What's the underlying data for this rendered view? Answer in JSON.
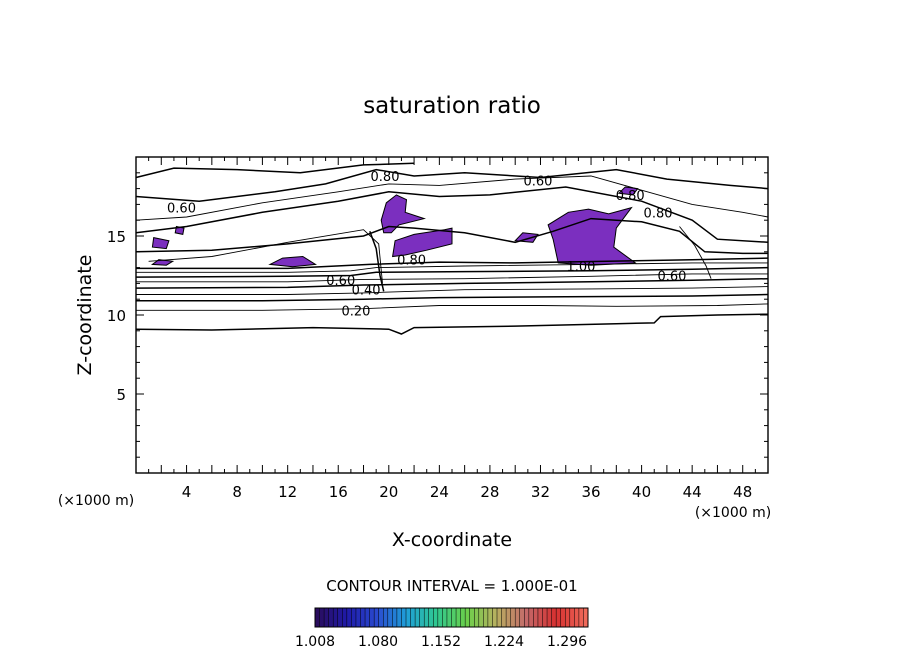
{
  "chart_data": {
    "type": "contour",
    "title": "saturation ratio",
    "xlabel": "X-coordinate",
    "ylabel": "Z-coordinate",
    "x_unit_label": "(×1000 m)",
    "y_unit_label": "(×1000 m)",
    "xlim": [
      0,
      50
    ],
    "ylim": [
      0,
      20
    ],
    "x_ticks": [
      4,
      8,
      12,
      16,
      20,
      24,
      28,
      32,
      36,
      40,
      44,
      48
    ],
    "y_ticks": [
      5,
      10,
      15
    ],
    "contour_interval_text": "CONTOUR INTERVAL = 1.000E-01",
    "contour_labels": [
      {
        "text": "0.80",
        "x": 19.7,
        "y": 18.8
      },
      {
        "text": "0.60",
        "x": 31.8,
        "y": 18.5
      },
      {
        "text": "0.60",
        "x": 3.6,
        "y": 16.8
      },
      {
        "text": "0.80",
        "x": 39.1,
        "y": 17.6
      },
      {
        "text": "0.80",
        "x": 41.3,
        "y": 16.5
      },
      {
        "text": "0.80",
        "x": 21.8,
        "y": 13.5
      },
      {
        "text": "1.00",
        "x": 35.2,
        "y": 13.1
      },
      {
        "text": "0.60",
        "x": 16.2,
        "y": 12.2
      },
      {
        "text": "0.40",
        "x": 18.2,
        "y": 11.6
      },
      {
        "text": "0.20",
        "x": 17.4,
        "y": 10.3
      },
      {
        "text": "0.60",
        "x": 42.4,
        "y": 12.5
      }
    ],
    "contour_lines": [
      {
        "level": 0.0,
        "points": [
          [
            0,
            9.1
          ],
          [
            6,
            9.05
          ],
          [
            14,
            9.2
          ],
          [
            20,
            9.1
          ],
          [
            21,
            8.8
          ],
          [
            22,
            9.2
          ],
          [
            30,
            9.3
          ],
          [
            38,
            9.45
          ],
          [
            41,
            9.5
          ],
          [
            41.5,
            9.9
          ],
          [
            46,
            10.0
          ],
          [
            50,
            10.05
          ]
        ]
      },
      {
        "level": 0.1,
        "points": [
          [
            0,
            10.3
          ],
          [
            10,
            10.3
          ],
          [
            18,
            10.4
          ],
          [
            24,
            10.6
          ],
          [
            32,
            10.6
          ],
          [
            38,
            10.55
          ],
          [
            46,
            10.6
          ],
          [
            50,
            10.7
          ]
        ]
      },
      {
        "level": 0.2,
        "points": [
          [
            0,
            10.9
          ],
          [
            10,
            10.9
          ],
          [
            18,
            11.0
          ],
          [
            24,
            11.1
          ],
          [
            34,
            11.15
          ],
          [
            44,
            11.2
          ],
          [
            50,
            11.3
          ]
        ]
      },
      {
        "level": 0.3,
        "points": [
          [
            0,
            11.3
          ],
          [
            12,
            11.3
          ],
          [
            18,
            11.4
          ],
          [
            26,
            11.6
          ],
          [
            36,
            11.65
          ],
          [
            44,
            11.7
          ],
          [
            50,
            11.8
          ]
        ]
      },
      {
        "level": 0.4,
        "points": [
          [
            0,
            11.7
          ],
          [
            12,
            11.75
          ],
          [
            18,
            11.9
          ],
          [
            26,
            12.0
          ],
          [
            36,
            12.1
          ],
          [
            44,
            12.2
          ],
          [
            50,
            12.3
          ]
        ]
      },
      {
        "level": 0.5,
        "points": [
          [
            0,
            12.1
          ],
          [
            12,
            12.1
          ],
          [
            18,
            12.25
          ],
          [
            26,
            12.3
          ],
          [
            36,
            12.45
          ],
          [
            44,
            12.6
          ],
          [
            50,
            12.6
          ]
        ]
      },
      {
        "level": 0.6,
        "points": [
          [
            0,
            12.4
          ],
          [
            12,
            12.45
          ],
          [
            17,
            12.5
          ],
          [
            19,
            12.7
          ],
          [
            26,
            12.75
          ],
          [
            36,
            12.8
          ],
          [
            44,
            12.9
          ],
          [
            50,
            13.0
          ]
        ]
      },
      {
        "level": 0.7,
        "points": [
          [
            0,
            12.7
          ],
          [
            12,
            12.7
          ],
          [
            17,
            12.8
          ],
          [
            19,
            13.0
          ],
          [
            26,
            13.1
          ],
          [
            36,
            13.2
          ],
          [
            44,
            13.3
          ],
          [
            50,
            13.3
          ]
        ]
      },
      {
        "level": 0.8,
        "points": [
          [
            0,
            12.95
          ],
          [
            12,
            12.95
          ],
          [
            18.5,
            13.2
          ],
          [
            24,
            13.35
          ],
          [
            30,
            13.3
          ],
          [
            44,
            13.5
          ],
          [
            50,
            13.6
          ]
        ]
      },
      {
        "level": 0.8,
        "points": [
          [
            0,
            15.2
          ],
          [
            4,
            15.6
          ],
          [
            10,
            16.5
          ],
          [
            16,
            17.2
          ],
          [
            20,
            17.8
          ],
          [
            24,
            17.5
          ],
          [
            28,
            17.6
          ],
          [
            34,
            18.1
          ],
          [
            40,
            17.2
          ],
          [
            44,
            16.0
          ],
          [
            46,
            14.8
          ],
          [
            50,
            14.6
          ]
        ]
      },
      {
        "level": 0.7,
        "points": [
          [
            0,
            16.0
          ],
          [
            4,
            16.2
          ],
          [
            10,
            17.1
          ],
          [
            16,
            17.8
          ],
          [
            20,
            18.3
          ],
          [
            24,
            18.2
          ],
          [
            30,
            18.6
          ],
          [
            36,
            18.8
          ],
          [
            40,
            17.9
          ],
          [
            44,
            17.0
          ],
          [
            48,
            16.5
          ],
          [
            50,
            16.2
          ]
        ]
      },
      {
        "level": 0.6,
        "points": [
          [
            0,
            17.5
          ],
          [
            5,
            17.2
          ],
          [
            11,
            17.8
          ],
          [
            15,
            18.3
          ],
          [
            19,
            19.2
          ],
          [
            22,
            18.8
          ],
          [
            26,
            19.0
          ],
          [
            32,
            18.7
          ],
          [
            38,
            19.2
          ],
          [
            42,
            18.6
          ],
          [
            47,
            18.2
          ],
          [
            50,
            18.0
          ]
        ]
      },
      {
        "level": 0.6,
        "points": [
          [
            0,
            14.0
          ],
          [
            6,
            14.1
          ],
          [
            12,
            14.5
          ],
          [
            18,
            15.0
          ],
          [
            20,
            15.6
          ],
          [
            22,
            15.5
          ],
          [
            26,
            15.2
          ],
          [
            30,
            14.6
          ],
          [
            33,
            15.3
          ],
          [
            36,
            16.1
          ],
          [
            40,
            15.9
          ],
          [
            43,
            15.3
          ],
          [
            45,
            14.0
          ],
          [
            48,
            13.9
          ],
          [
            50,
            13.9
          ]
        ]
      },
      {
        "level": 0.9,
        "points": [
          [
            1,
            13.4
          ],
          [
            6,
            13.7
          ],
          [
            12,
            14.6
          ],
          [
            18,
            15.4
          ],
          [
            19.2,
            14.5
          ],
          [
            19.5,
            12.0
          ]
        ]
      },
      {
        "level": 0.9,
        "points": [
          [
            43,
            15.6
          ],
          [
            44.2,
            14.4
          ],
          [
            45.1,
            13.1
          ],
          [
            45.5,
            12.3
          ]
        ]
      },
      {
        "level": 0.8,
        "points": [
          [
            18.5,
            15.3
          ],
          [
            19.0,
            14.2
          ],
          [
            19.3,
            12.5
          ],
          [
            19.6,
            11.5
          ]
        ]
      },
      {
        "level": 0.6,
        "points": [
          [
            0,
            18.7
          ],
          [
            3,
            19.3
          ],
          [
            8,
            19.2
          ],
          [
            13,
            19.0
          ],
          [
            18,
            19.5
          ],
          [
            22,
            19.6
          ]
        ]
      }
    ],
    "filled_regions": [
      {
        "level": 1.02,
        "points": [
          [
            19.4,
            16.0
          ],
          [
            19.8,
            17.1
          ],
          [
            20.6,
            17.6
          ],
          [
            21.4,
            17.3
          ],
          [
            21.3,
            16.5
          ],
          [
            22.8,
            16.1
          ],
          [
            20.8,
            15.7
          ],
          [
            20.2,
            15.2
          ],
          [
            19.6,
            15.2
          ]
        ]
      },
      {
        "level": 1.02,
        "points": [
          [
            20.3,
            13.7
          ],
          [
            20.5,
            14.7
          ],
          [
            22.0,
            15.1
          ],
          [
            24.4,
            15.4
          ],
          [
            25.0,
            15.5
          ],
          [
            25.0,
            14.5
          ],
          [
            23.0,
            14.1
          ],
          [
            21.3,
            13.8
          ]
        ]
      },
      {
        "level": 1.02,
        "points": [
          [
            33.4,
            13.3
          ],
          [
            33.0,
            14.8
          ],
          [
            32.6,
            15.7
          ],
          [
            34.2,
            16.5
          ],
          [
            35.8,
            16.7
          ],
          [
            37.4,
            16.4
          ],
          [
            39.2,
            16.8
          ],
          [
            38.0,
            15.5
          ],
          [
            37.8,
            14.3
          ],
          [
            39.5,
            13.3
          ],
          [
            36.0,
            13.15
          ]
        ]
      },
      {
        "level": 1.02,
        "points": [
          [
            10.6,
            13.2
          ],
          [
            11.6,
            13.6
          ],
          [
            13.2,
            13.7
          ],
          [
            14.2,
            13.2
          ],
          [
            12.4,
            13.05
          ]
        ]
      },
      {
        "level": 1.02,
        "points": [
          [
            1.3,
            14.3
          ],
          [
            1.4,
            14.9
          ],
          [
            2.6,
            14.7
          ],
          [
            2.4,
            14.2
          ]
        ]
      },
      {
        "level": 1.02,
        "points": [
          [
            1.3,
            13.2
          ],
          [
            1.8,
            13.5
          ],
          [
            2.9,
            13.4
          ],
          [
            2.4,
            13.15
          ]
        ]
      },
      {
        "level": 1.02,
        "points": [
          [
            30.0,
            14.7
          ],
          [
            30.6,
            15.2
          ],
          [
            31.8,
            15.1
          ],
          [
            31.4,
            14.6
          ]
        ]
      },
      {
        "level": 1.02,
        "points": [
          [
            3.1,
            15.2
          ],
          [
            3.2,
            15.6
          ],
          [
            3.8,
            15.5
          ],
          [
            3.7,
            15.1
          ]
        ]
      },
      {
        "level": 1.02,
        "points": [
          [
            38.2,
            17.7
          ],
          [
            38.7,
            18.1
          ],
          [
            39.7,
            18.0
          ],
          [
            39.3,
            17.6
          ]
        ]
      }
    ],
    "colorbar": {
      "min": 1.008,
      "max": 1.32,
      "tick_labels": [
        "1.008",
        "1.080",
        "1.152",
        "1.224",
        "1.296"
      ],
      "colors": [
        "#2a0d5e",
        "#1f1aa8",
        "#2a4ad0",
        "#1fa0d8",
        "#30c890",
        "#6ad04a",
        "#b8b060",
        "#c46a6a",
        "#d63030",
        "#ef6a5a"
      ]
    },
    "fill_color": "#7b2fbf"
  }
}
